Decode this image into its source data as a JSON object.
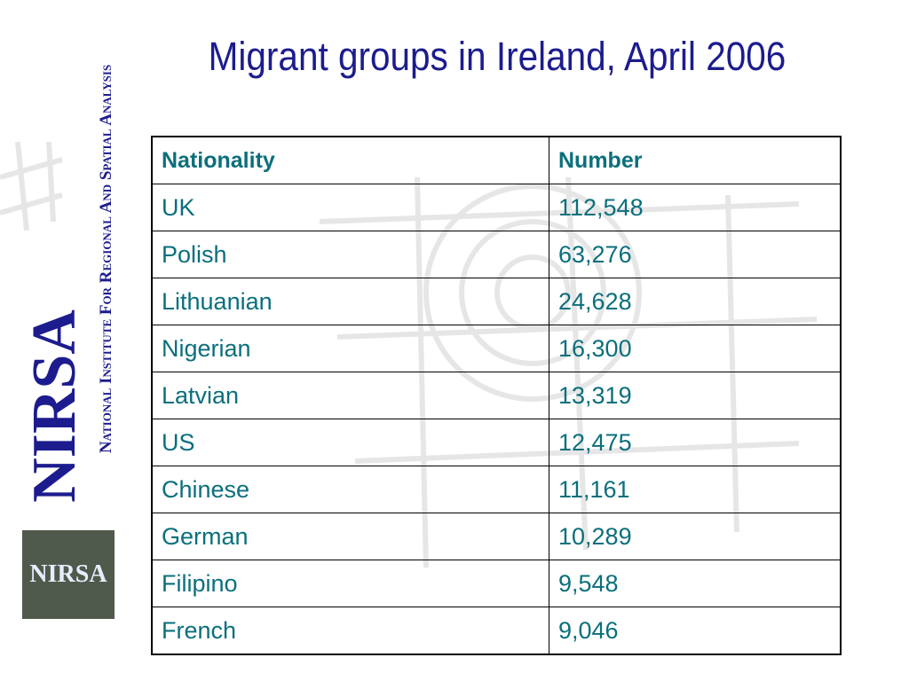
{
  "header": {
    "title": "Migrant groups in Ireland, April 2006"
  },
  "sidebar": {
    "logo": "NIRSA",
    "institute": "National Institute For Regional And Spatial Analysis",
    "badge": "NIRSA"
  },
  "table": {
    "columns": [
      "Nationality",
      "Number"
    ],
    "rows": [
      [
        "UK",
        "112,548"
      ],
      [
        "Polish",
        "63,276"
      ],
      [
        "Lithuanian",
        "24,628"
      ],
      [
        "Nigerian",
        "16,300"
      ],
      [
        "Latvian",
        "13,319"
      ],
      [
        "US",
        "12,475"
      ],
      [
        "Chinese",
        "11,161"
      ],
      [
        "German",
        "10,289"
      ],
      [
        "Filipino",
        "9,548"
      ],
      [
        "French",
        "9,046"
      ]
    ]
  }
}
